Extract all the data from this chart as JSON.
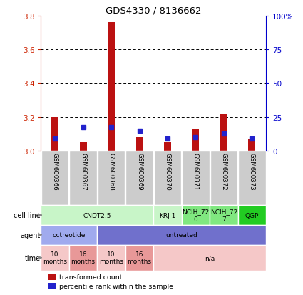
{
  "title": "GDS4330 / 8136662",
  "samples": [
    "GSM600366",
    "GSM600367",
    "GSM600368",
    "GSM600369",
    "GSM600370",
    "GSM600371",
    "GSM600372",
    "GSM600373"
  ],
  "red_bar_bottom": [
    3.0,
    3.0,
    3.0,
    3.0,
    3.0,
    3.0,
    3.0,
    3.0
  ],
  "red_bar_top": [
    3.2,
    3.05,
    3.76,
    3.08,
    3.05,
    3.13,
    3.22,
    3.07
  ],
  "blue_dot_y": [
    3.07,
    3.14,
    3.14,
    3.12,
    3.07,
    3.08,
    3.1,
    3.07
  ],
  "ylim_left": [
    3.0,
    3.8
  ],
  "yticks_left": [
    3.0,
    3.2,
    3.4,
    3.6,
    3.8
  ],
  "yticks_right": [
    0,
    25,
    50,
    75,
    100
  ],
  "ytick_labels_right": [
    "0",
    "25",
    "50",
    "75",
    "100%"
  ],
  "cell_line_groups": [
    {
      "label": "CNDT2.5",
      "start": 0,
      "end": 3,
      "color": "#c8f5c8"
    },
    {
      "label": "KRJ-1",
      "start": 4,
      "end": 4,
      "color": "#c8f5c8"
    },
    {
      "label": "NCIH_72\n0",
      "start": 5,
      "end": 5,
      "color": "#80e880"
    },
    {
      "label": "NCIH_72\n7",
      "start": 6,
      "end": 6,
      "color": "#80e880"
    },
    {
      "label": "QGP",
      "start": 7,
      "end": 7,
      "color": "#22cc22"
    }
  ],
  "agent_groups": [
    {
      "label": "octreotide",
      "start": 0,
      "end": 1,
      "color": "#a0aaee"
    },
    {
      "label": "untreated",
      "start": 2,
      "end": 7,
      "color": "#7070cc"
    }
  ],
  "time_groups": [
    {
      "label": "10\nmonths",
      "start": 0,
      "end": 0,
      "color": "#f5c8c8"
    },
    {
      "label": "16\nmonths",
      "start": 1,
      "end": 1,
      "color": "#e89898"
    },
    {
      "label": "10\nmonths",
      "start": 2,
      "end": 2,
      "color": "#f5c8c8"
    },
    {
      "label": "16\nmonths",
      "start": 3,
      "end": 3,
      "color": "#e89898"
    },
    {
      "label": "n/a",
      "start": 4,
      "end": 7,
      "color": "#f5c8c8"
    }
  ],
  "legend_red": "transformed count",
  "legend_blue": "percentile rank within the sample",
  "bar_color": "#bb1111",
  "dot_color": "#2222cc",
  "axis_color_left": "#cc2200",
  "axis_color_right": "#0000cc",
  "sample_bg_color": "#cccccc",
  "border_color": "#ffffff"
}
